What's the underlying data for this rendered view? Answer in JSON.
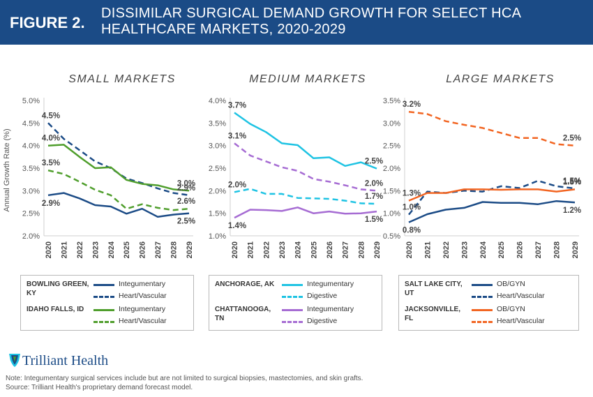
{
  "header": {
    "figure_label": "FIGURE 2.",
    "title": "DISSIMILAR SURGICAL DEMAND GROWTH FOR SELECT HCA HEALTHCARE MARKETS, 2020-2029"
  },
  "y_axis_label": "Annual Growth Rate (%)",
  "colors": {
    "header_bg": "#1b4b86",
    "dark_blue": "#1b4b86",
    "green": "#4f9e2c",
    "cyan": "#1ec3e3",
    "purple": "#a66cd3",
    "orange": "#f26522"
  },
  "chart_data": [
    {
      "type": "line",
      "title": "SMALL MARKETS",
      "ylabel": "Annual Growth Rate (%)",
      "ylim": [
        2.0,
        5.0
      ],
      "yticks": [
        "2.0%",
        "2.5%",
        "3.0%",
        "3.5%",
        "4.0%",
        "4.5%",
        "5.0%"
      ],
      "ytick_values": [
        2.0,
        2.5,
        3.0,
        3.5,
        4.0,
        4.5,
        5.0
      ],
      "x": [
        "2020",
        "2021",
        "2022",
        "2023",
        "2024",
        "2025",
        "2026",
        "2027",
        "2028",
        "2029"
      ],
      "series": [
        {
          "name": "Bowling Green, KY – Integumentary",
          "color": "#1b4b86",
          "dash": false,
          "values": [
            2.9,
            2.95,
            2.83,
            2.68,
            2.65,
            2.49,
            2.6,
            2.42,
            2.47,
            2.5
          ]
        },
        {
          "name": "Bowling Green, KY – Heart/Vascular",
          "color": "#1b4b86",
          "dash": true,
          "values": [
            4.5,
            4.15,
            3.9,
            3.65,
            3.5,
            3.27,
            3.17,
            3.05,
            2.95,
            2.9
          ]
        },
        {
          "name": "Idaho Falls, ID – Integumentary",
          "color": "#4f9e2c",
          "dash": false,
          "values": [
            4.0,
            4.02,
            3.75,
            3.5,
            3.52,
            3.24,
            3.15,
            3.12,
            3.03,
            3.0
          ]
        },
        {
          "name": "Idaho Falls, ID – Heart/Vascular",
          "color": "#4f9e2c",
          "dash": true,
          "values": [
            3.45,
            3.37,
            3.2,
            3.02,
            2.9,
            2.6,
            2.7,
            2.62,
            2.57,
            2.6
          ]
        }
      ],
      "annotations": [
        {
          "text": "4.5%",
          "series": 1,
          "at": "start"
        },
        {
          "text": "4.0%",
          "series": 2,
          "at": "start"
        },
        {
          "text": "3.5%",
          "series": 3,
          "at": "start"
        },
        {
          "text": "2.9%",
          "series": 0,
          "at": "start"
        },
        {
          "text": "3.0%",
          "series": 2,
          "at": "end"
        },
        {
          "text": "2.9%",
          "series": 1,
          "at": "end"
        },
        {
          "text": "2.6%",
          "series": 3,
          "at": "end"
        },
        {
          "text": "2.5%",
          "series": 0,
          "at": "end"
        }
      ],
      "legend": [
        {
          "market": "BOWLING GREEN, KY",
          "items": [
            {
              "label": "Integumentary",
              "color": "#1b4b86",
              "dash": false
            },
            {
              "label": "Heart/Vascular",
              "color": "#1b4b86",
              "dash": true
            }
          ]
        },
        {
          "market": "IDAHO FALLS, ID",
          "items": [
            {
              "label": "Integumentary",
              "color": "#4f9e2c",
              "dash": false
            },
            {
              "label": "Heart/Vascular",
              "color": "#4f9e2c",
              "dash": true
            }
          ]
        }
      ]
    },
    {
      "type": "line",
      "title": "MEDIUM MARKETS",
      "ylim": [
        1.0,
        4.0
      ],
      "yticks": [
        "1.0%",
        "1.5%",
        "2.0%",
        "2.5%",
        "3.0%",
        "3.5%",
        "4.0%"
      ],
      "ytick_values": [
        1.0,
        1.5,
        2.0,
        2.5,
        3.0,
        3.5,
        4.0
      ],
      "x": [
        "2020",
        "2021",
        "2022",
        "2023",
        "2024",
        "2025",
        "2026",
        "2027",
        "2028",
        "2029"
      ],
      "series": [
        {
          "name": "Anchorage, AK – Integumentary",
          "color": "#1ec3e3",
          "dash": false,
          "values": [
            3.73,
            3.48,
            3.3,
            3.05,
            3.01,
            2.72,
            2.74,
            2.55,
            2.63,
            2.49
          ]
        },
        {
          "name": "Anchorage, AK – Digestive",
          "color": "#1ec3e3",
          "dash": true,
          "values": [
            1.97,
            2.04,
            1.93,
            1.93,
            1.84,
            1.83,
            1.82,
            1.78,
            1.72,
            1.71
          ]
        },
        {
          "name": "Chattanooga, TN – Integumentary",
          "color": "#a66cd3",
          "dash": false,
          "values": [
            1.4,
            1.58,
            1.57,
            1.55,
            1.63,
            1.5,
            1.54,
            1.49,
            1.5,
            1.54
          ]
        },
        {
          "name": "Chattanooga, TN – Digestive",
          "color": "#a66cd3",
          "dash": true,
          "values": [
            3.05,
            2.78,
            2.65,
            2.52,
            2.44,
            2.26,
            2.2,
            2.12,
            2.03,
            2.0
          ]
        }
      ],
      "annotations": [
        {
          "text": "3.7%",
          "series": 0,
          "at": "start"
        },
        {
          "text": "3.1%",
          "series": 3,
          "at": "start"
        },
        {
          "text": "2.0%",
          "series": 1,
          "at": "start"
        },
        {
          "text": "1.4%",
          "series": 2,
          "at": "start"
        },
        {
          "text": "2.5%",
          "series": 0,
          "at": "end"
        },
        {
          "text": "2.0%",
          "series": 3,
          "at": "end"
        },
        {
          "text": "1.7%",
          "series": 1,
          "at": "end"
        },
        {
          "text": "1.5%",
          "series": 2,
          "at": "end"
        }
      ],
      "legend": [
        {
          "market": "ANCHORAGE, AK",
          "items": [
            {
              "label": "Integumentary",
              "color": "#1ec3e3",
              "dash": false
            },
            {
              "label": "Digestive",
              "color": "#1ec3e3",
              "dash": true
            }
          ]
        },
        {
          "market": "CHATTANOOGA, TN",
          "items": [
            {
              "label": "Integumentary",
              "color": "#a66cd3",
              "dash": false
            },
            {
              "label": "Digestive",
              "color": "#a66cd3",
              "dash": true
            }
          ]
        }
      ]
    },
    {
      "type": "line",
      "title": "LARGE MARKETS",
      "ylim": [
        0.5,
        3.5
      ],
      "yticks": [
        "0.5%",
        "1.0%",
        "1.5%",
        "2.0%",
        "2.5%",
        "3.0%",
        "3.5%"
      ],
      "ytick_values": [
        0.5,
        1.0,
        1.5,
        2.0,
        2.5,
        3.0,
        3.5
      ],
      "x": [
        "2020",
        "2021",
        "2022",
        "2023",
        "2024",
        "2025",
        "2026",
        "2027",
        "2028",
        "2029"
      ],
      "series": [
        {
          "name": "Salt Lake City, UT – OB/GYN",
          "color": "#1b4b86",
          "dash": false,
          "values": [
            0.8,
            0.98,
            1.08,
            1.12,
            1.25,
            1.23,
            1.23,
            1.2,
            1.27,
            1.24
          ]
        },
        {
          "name": "Salt Lake City, UT – Heart/Vascular",
          "color": "#1b4b86",
          "dash": true,
          "values": [
            0.97,
            1.48,
            1.45,
            1.5,
            1.48,
            1.6,
            1.56,
            1.72,
            1.6,
            1.55
          ]
        },
        {
          "name": "Jacksonville, FL – OB/GYN",
          "color": "#f26522",
          "dash": false,
          "values": [
            1.28,
            1.45,
            1.45,
            1.53,
            1.53,
            1.52,
            1.53,
            1.53,
            1.48,
            1.53
          ]
        },
        {
          "name": "Jacksonville, FL – Heart/Vascular",
          "color": "#f26522",
          "dash": true,
          "values": [
            3.25,
            3.2,
            3.04,
            2.96,
            2.89,
            2.78,
            2.67,
            2.67,
            2.53,
            2.5
          ]
        }
      ],
      "annotations": [
        {
          "text": "3.2%",
          "series": 3,
          "at": "start"
        },
        {
          "text": "1.3%",
          "series": 2,
          "at": "start"
        },
        {
          "text": "1.0%",
          "series": 1,
          "at": "start"
        },
        {
          "text": "0.8%",
          "series": 0,
          "at": "start"
        },
        {
          "text": "2.5%",
          "series": 3,
          "at": "end"
        },
        {
          "text": "1.5%",
          "series": 1,
          "at": "end"
        },
        {
          "text": "1.5%",
          "series": 2,
          "at": "end"
        },
        {
          "text": "1.2%",
          "series": 0,
          "at": "end"
        }
      ],
      "legend": [
        {
          "market": "SALT LAKE CITY, UT",
          "items": [
            {
              "label": "OB/GYN",
              "color": "#1b4b86",
              "dash": false
            },
            {
              "label": "Heart/Vascular",
              "color": "#1b4b86",
              "dash": true
            }
          ]
        },
        {
          "market": "JACKSONVILLE, FL",
          "items": [
            {
              "label": "OB/GYN",
              "color": "#f26522",
              "dash": false
            },
            {
              "label": "Heart/Vascular",
              "color": "#f26522",
              "dash": true
            }
          ]
        }
      ]
    }
  ],
  "logo": {
    "text": "Trilliant Health"
  },
  "footer": {
    "note": "Note: Integumentary surgical services include but are not limited to surgical biopsies, mastectomies, and skin grafts.",
    "source": "Source: Trilliant Health's proprietary demand forecast model."
  }
}
